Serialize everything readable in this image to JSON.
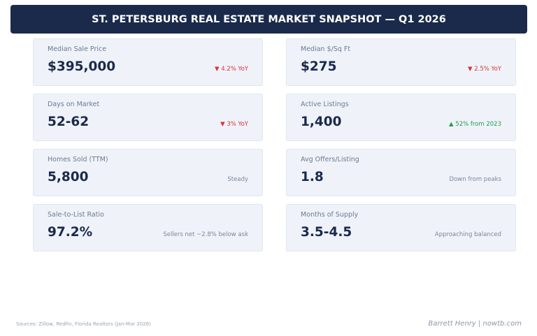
{
  "title": "ST. PETERSBURG REAL ESTATE MARKET SNAPSHOT — Q1 2026",
  "cards": [
    {
      "label": "Median Sale Price",
      "value": "$395,000",
      "change": "▼ 4.2% YoY",
      "trend": "down"
    },
    {
      "label": "Median $/Sq Ft",
      "value": "$275",
      "change": "▼ 2.5% YoY",
      "trend": "down"
    },
    {
      "label": "Days on Market",
      "value": "52-62",
      "change": "▼ 3% YoY",
      "trend": "down"
    },
    {
      "label": "Active Listings",
      "value": "1,400",
      "change": "▲ 52% from 2023",
      "trend": "up"
    },
    {
      "label": "Homes Sold (TTM)",
      "value": "5,800",
      "change": "Steady",
      "trend": "neutral"
    },
    {
      "label": "Avg Offers/Listing",
      "value": "1.8",
      "change": "Down from peaks",
      "trend": "neutral"
    },
    {
      "label": "Sale-to-List Ratio",
      "value": "97.2%",
      "change": "Sellers net ~2.8% below ask",
      "trend": "neutral"
    },
    {
      "label": "Months of Supply",
      "value": "3.5-4.5",
      "change": "Approaching balanced",
      "trend": "neutral"
    }
  ],
  "colors": {
    "header": "#1b2a4a",
    "down": "#d93434",
    "up": "#1e9e4a"
  },
  "footer": {
    "sources": "Sources: Zillow, Redfin, Florida Realtors (Jan-Mar 2026)",
    "brand": "Barrett Henry | nowtb.com"
  }
}
